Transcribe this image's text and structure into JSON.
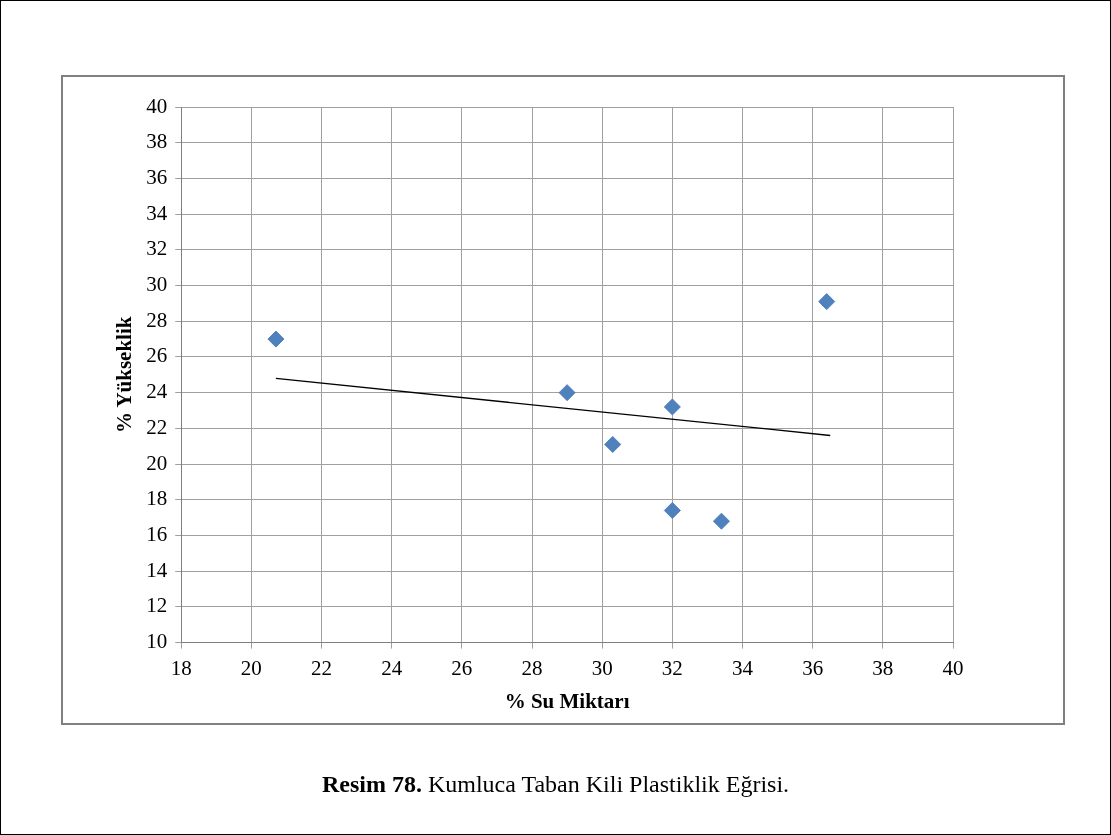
{
  "chart_data": {
    "type": "scatter",
    "xlabel": "% Su Miktarı",
    "ylabel": "% Yükseklik",
    "annotations": [
      "Resim 78.",
      "Kumluca Taban Kili Plastiklik Eğrisi."
    ],
    "series": [
      {
        "color": "#4f81bd",
        "marker": "diamond",
        "x": [
          20.7,
          29.0,
          30.3,
          32.0,
          32.0,
          33.4,
          36.4
        ],
        "values": [
          27.0,
          24.0,
          21.1,
          23.2,
          17.4,
          16.8,
          29.1
        ]
      },
      {
        "type": "line",
        "color": "#000000",
        "marker": "none",
        "line_style": "solid",
        "x": [
          20.7,
          36.5
        ],
        "values": [
          24.8,
          21.6
        ]
      }
    ],
    "xlim": [
      18,
      40
    ],
    "xticks": [
      18,
      20,
      22,
      24,
      26,
      28,
      30,
      32,
      34,
      36,
      38,
      40
    ],
    "ylim": [
      10,
      40
    ],
    "yticks": [
      10,
      12,
      14,
      16,
      18,
      20,
      22,
      24,
      26,
      28,
      30,
      32,
      34,
      36,
      38,
      40
    ],
    "grid": true,
    "legend": false
  }
}
